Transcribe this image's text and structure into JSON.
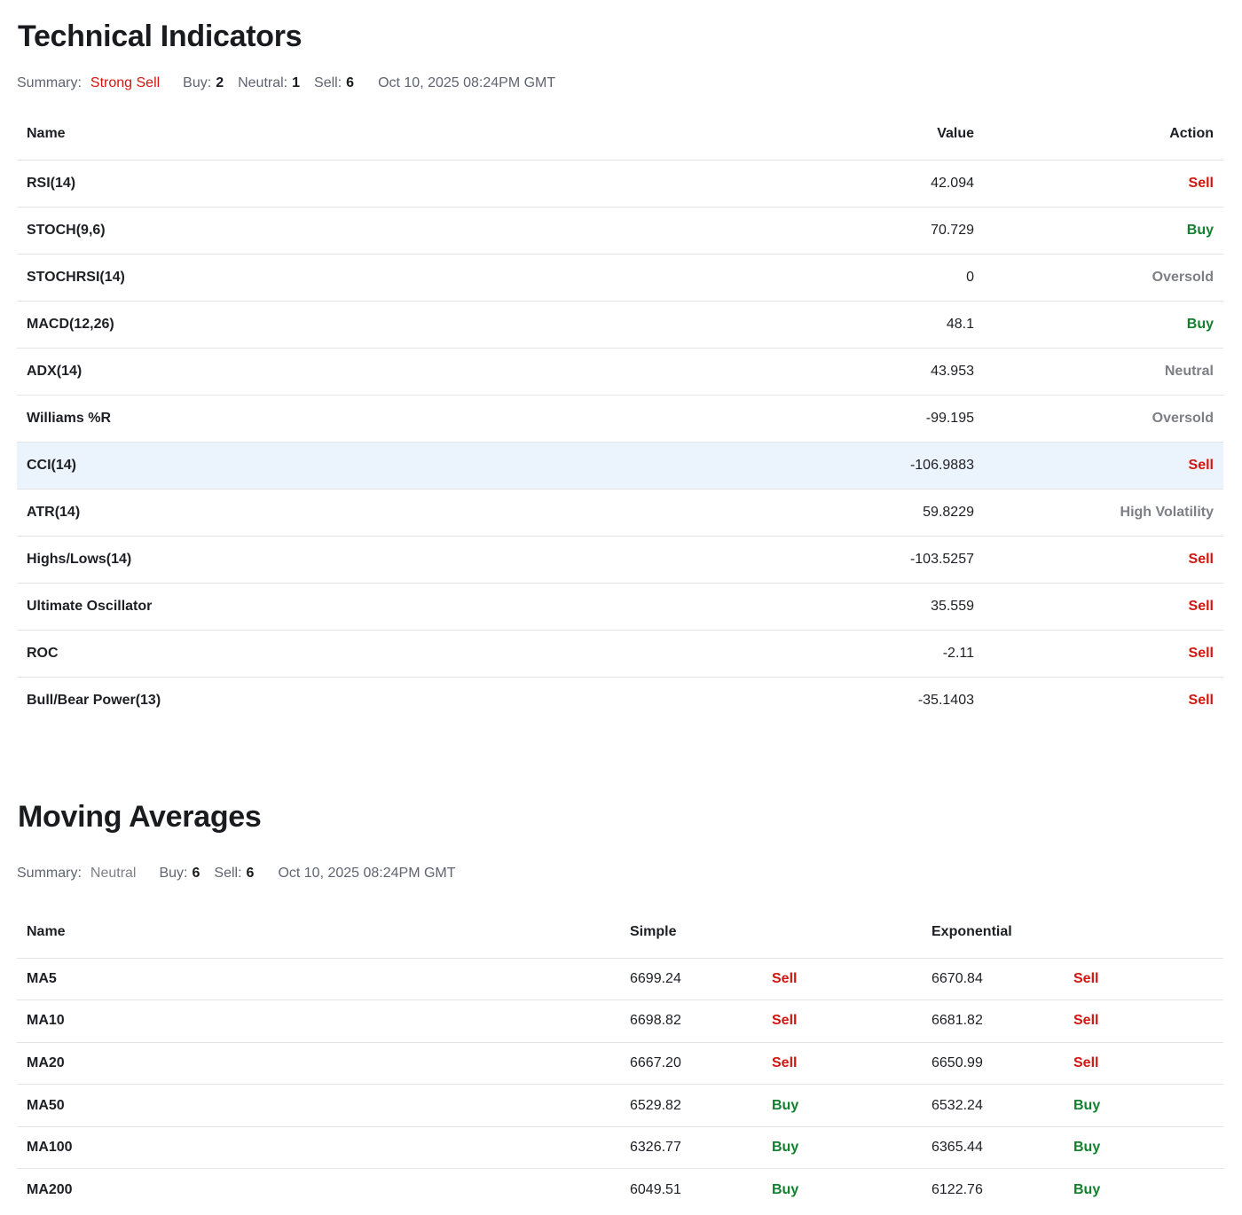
{
  "technical": {
    "title": "Technical Indicators",
    "summary": {
      "label": "Summary:",
      "signal": "Strong Sell",
      "buy_label": "Buy:",
      "buy_count": "2",
      "neutral_label": "Neutral:",
      "neutral_count": "1",
      "sell_label": "Sell:",
      "sell_count": "6",
      "timestamp": "Oct 10, 2025 08:24PM GMT"
    },
    "headers": {
      "name": "Name",
      "value": "Value",
      "action": "Action"
    },
    "rows": [
      {
        "name": "RSI(14)",
        "value": "42.094",
        "action": "Sell",
        "kind": "sell"
      },
      {
        "name": "STOCH(9,6)",
        "value": "70.729",
        "action": "Buy",
        "kind": "buy"
      },
      {
        "name": "STOCHRSI(14)",
        "value": "0",
        "action": "Oversold",
        "kind": "neutral"
      },
      {
        "name": "MACD(12,26)",
        "value": "48.1",
        "action": "Buy",
        "kind": "buy"
      },
      {
        "name": "ADX(14)",
        "value": "43.953",
        "action": "Neutral",
        "kind": "neutral"
      },
      {
        "name": "Williams %R",
        "value": "-99.195",
        "action": "Oversold",
        "kind": "neutral"
      },
      {
        "name": "CCI(14)",
        "value": "-106.9883",
        "action": "Sell",
        "kind": "sell"
      },
      {
        "name": "ATR(14)",
        "value": "59.8229",
        "action": "High Volatility",
        "kind": "neutral"
      },
      {
        "name": "Highs/Lows(14)",
        "value": "-103.5257",
        "action": "Sell",
        "kind": "sell"
      },
      {
        "name": "Ultimate Oscillator",
        "value": "35.559",
        "action": "Sell",
        "kind": "sell"
      },
      {
        "name": "ROC",
        "value": "-2.11",
        "action": "Sell",
        "kind": "sell"
      },
      {
        "name": "Bull/Bear Power(13)",
        "value": "-35.1403",
        "action": "Sell",
        "kind": "sell"
      }
    ]
  },
  "moving_averages": {
    "title": "Moving Averages",
    "summary": {
      "label": "Summary:",
      "signal": "Neutral",
      "buy_label": "Buy:",
      "buy_count": "6",
      "sell_label": "Sell:",
      "sell_count": "6",
      "timestamp": "Oct 10, 2025 08:24PM GMT"
    },
    "headers": {
      "name": "Name",
      "simple": "Simple",
      "exponential": "Exponential"
    },
    "rows": [
      {
        "name": "MA5",
        "simple": "6699.24",
        "simple_action": "Sell",
        "exp": "6670.84",
        "exp_action": "Sell"
      },
      {
        "name": "MA10",
        "simple": "6698.82",
        "simple_action": "Sell",
        "exp": "6681.82",
        "exp_action": "Sell"
      },
      {
        "name": "MA20",
        "simple": "6667.20",
        "simple_action": "Sell",
        "exp": "6650.99",
        "exp_action": "Sell"
      },
      {
        "name": "MA50",
        "simple": "6529.82",
        "simple_action": "Buy",
        "exp": "6532.24",
        "exp_action": "Buy"
      },
      {
        "name": "MA100",
        "simple": "6326.77",
        "simple_action": "Buy",
        "exp": "6365.44",
        "exp_action": "Buy"
      },
      {
        "name": "MA200",
        "simple": "6049.51",
        "simple_action": "Buy",
        "exp": "6122.76",
        "exp_action": "Buy"
      }
    ]
  },
  "colors": {
    "sell": "#d3160f",
    "buy": "#12802e",
    "neutral": "#7d7f85",
    "highlight_row": "#ebf3fc"
  }
}
